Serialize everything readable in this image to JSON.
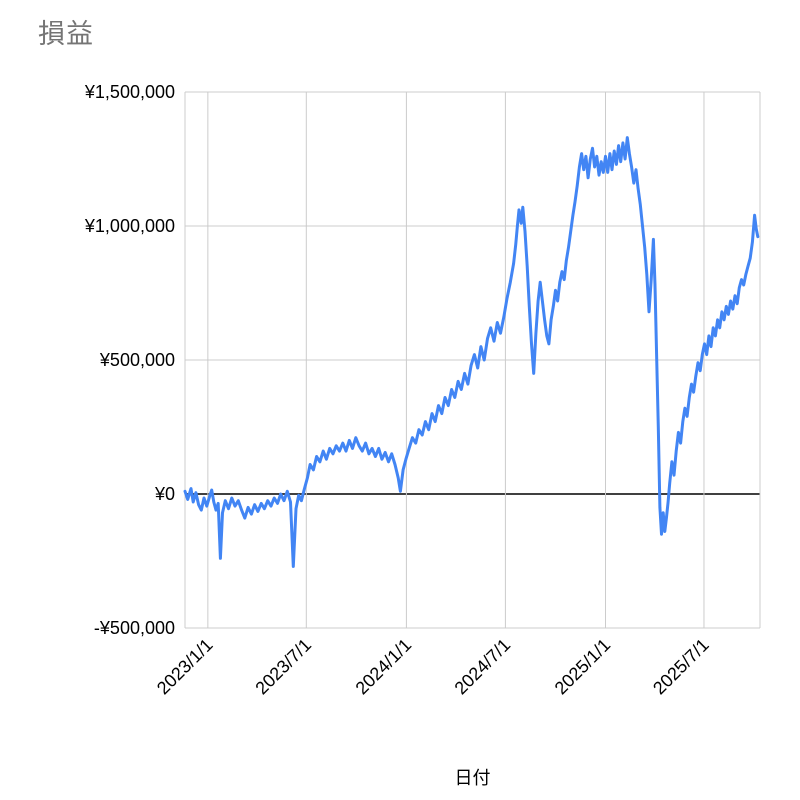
{
  "chart_data": {
    "type": "line",
    "title": "損益",
    "xlabel": "日付",
    "ylabel": "",
    "legend": "none",
    "grid": true,
    "series_name": "損益",
    "colors": {
      "line": "#4285f4",
      "grid": "#cccccc",
      "zero_axis": "#000000",
      "title_text": "#757575",
      "tick_text": "#000000",
      "background": "#ffffff"
    },
    "x_range": [
      "2022-11-20",
      "2025-10-12"
    ],
    "y_range": [
      -500000,
      1500000
    ],
    "y_ticks": [
      {
        "value": 1500000,
        "label": "¥1,500,000"
      },
      {
        "value": 1000000,
        "label": "¥1,000,000"
      },
      {
        "value": 500000,
        "label": "¥500,000"
      },
      {
        "value": 0,
        "label": "¥0"
      },
      {
        "value": -500000,
        "label": "-¥500,000"
      }
    ],
    "x_ticks": [
      {
        "date": "2023-01-01",
        "label": "2023/1/1"
      },
      {
        "date": "2023-07-01",
        "label": "2023/7/1"
      },
      {
        "date": "2024-01-01",
        "label": "2024/1/1"
      },
      {
        "date": "2024-07-01",
        "label": "2024/7/1"
      },
      {
        "date": "2025-01-01",
        "label": "2025/1/1"
      },
      {
        "date": "2025-07-01",
        "label": "2025/7/1"
      }
    ],
    "points": [
      [
        "2022-11-20",
        10000
      ],
      [
        "2022-11-25",
        -20000
      ],
      [
        "2022-12-01",
        20000
      ],
      [
        "2022-12-05",
        -30000
      ],
      [
        "2022-12-10",
        5000
      ],
      [
        "2022-12-15",
        -40000
      ],
      [
        "2022-12-20",
        -60000
      ],
      [
        "2022-12-25",
        -15000
      ],
      [
        "2022-12-30",
        -45000
      ],
      [
        "2023-01-04",
        -10000
      ],
      [
        "2023-01-08",
        15000
      ],
      [
        "2023-01-12",
        -30000
      ],
      [
        "2023-01-16",
        -60000
      ],
      [
        "2023-01-20",
        -35000
      ],
      [
        "2023-01-24",
        -240000
      ],
      [
        "2023-01-28",
        -70000
      ],
      [
        "2023-02-02",
        -25000
      ],
      [
        "2023-02-08",
        -55000
      ],
      [
        "2023-02-14",
        -15000
      ],
      [
        "2023-02-20",
        -45000
      ],
      [
        "2023-02-26",
        -25000
      ],
      [
        "2023-03-04",
        -60000
      ],
      [
        "2023-03-10",
        -90000
      ],
      [
        "2023-03-16",
        -50000
      ],
      [
        "2023-03-22",
        -75000
      ],
      [
        "2023-03-28",
        -40000
      ],
      [
        "2023-04-03",
        -65000
      ],
      [
        "2023-04-09",
        -35000
      ],
      [
        "2023-04-15",
        -55000
      ],
      [
        "2023-04-21",
        -25000
      ],
      [
        "2023-04-27",
        -45000
      ],
      [
        "2023-05-03",
        -15000
      ],
      [
        "2023-05-09",
        -35000
      ],
      [
        "2023-05-15",
        0
      ],
      [
        "2023-05-21",
        -25000
      ],
      [
        "2023-05-27",
        10000
      ],
      [
        "2023-06-02",
        -30000
      ],
      [
        "2023-06-07",
        -270000
      ],
      [
        "2023-06-12",
        -55000
      ],
      [
        "2023-06-17",
        -5000
      ],
      [
        "2023-06-22",
        -25000
      ],
      [
        "2023-06-27",
        15000
      ],
      [
        "2023-07-03",
        60000
      ],
      [
        "2023-07-08",
        110000
      ],
      [
        "2023-07-14",
        90000
      ],
      [
        "2023-07-20",
        140000
      ],
      [
        "2023-07-26",
        120000
      ],
      [
        "2023-08-01",
        160000
      ],
      [
        "2023-08-07",
        130000
      ],
      [
        "2023-08-13",
        170000
      ],
      [
        "2023-08-19",
        150000
      ],
      [
        "2023-08-25",
        180000
      ],
      [
        "2023-08-31",
        160000
      ],
      [
        "2023-09-06",
        190000
      ],
      [
        "2023-09-12",
        160000
      ],
      [
        "2023-09-18",
        200000
      ],
      [
        "2023-09-24",
        170000
      ],
      [
        "2023-09-30",
        210000
      ],
      [
        "2023-10-06",
        180000
      ],
      [
        "2023-10-12",
        160000
      ],
      [
        "2023-10-18",
        190000
      ],
      [
        "2023-10-24",
        150000
      ],
      [
        "2023-10-30",
        170000
      ],
      [
        "2023-11-05",
        140000
      ],
      [
        "2023-11-11",
        170000
      ],
      [
        "2023-11-17",
        130000
      ],
      [
        "2023-11-23",
        155000
      ],
      [
        "2023-11-29",
        120000
      ],
      [
        "2023-12-05",
        150000
      ],
      [
        "2023-12-11",
        110000
      ],
      [
        "2023-12-17",
        60000
      ],
      [
        "2023-12-21",
        10000
      ],
      [
        "2023-12-26",
        90000
      ],
      [
        "2023-12-31",
        130000
      ],
      [
        "2024-01-06",
        170000
      ],
      [
        "2024-01-12",
        210000
      ],
      [
        "2024-01-18",
        190000
      ],
      [
        "2024-01-24",
        240000
      ],
      [
        "2024-01-30",
        220000
      ],
      [
        "2024-02-05",
        270000
      ],
      [
        "2024-02-11",
        240000
      ],
      [
        "2024-02-17",
        300000
      ],
      [
        "2024-02-23",
        270000
      ],
      [
        "2024-02-29",
        330000
      ],
      [
        "2024-03-06",
        300000
      ],
      [
        "2024-03-12",
        360000
      ],
      [
        "2024-03-18",
        330000
      ],
      [
        "2024-03-24",
        390000
      ],
      [
        "2024-03-30",
        360000
      ],
      [
        "2024-04-05",
        420000
      ],
      [
        "2024-04-11",
        390000
      ],
      [
        "2024-04-17",
        450000
      ],
      [
        "2024-04-23",
        410000
      ],
      [
        "2024-04-29",
        480000
      ],
      [
        "2024-05-05",
        520000
      ],
      [
        "2024-05-11",
        470000
      ],
      [
        "2024-05-17",
        550000
      ],
      [
        "2024-05-23",
        500000
      ],
      [
        "2024-05-29",
        580000
      ],
      [
        "2024-06-04",
        620000
      ],
      [
        "2024-06-10",
        570000
      ],
      [
        "2024-06-16",
        640000
      ],
      [
        "2024-06-22",
        600000
      ],
      [
        "2024-06-28",
        660000
      ],
      [
        "2024-07-04",
        730000
      ],
      [
        "2024-07-10",
        790000
      ],
      [
        "2024-07-16",
        860000
      ],
      [
        "2024-07-20",
        930000
      ],
      [
        "2024-07-23",
        1000000
      ],
      [
        "2024-07-26",
        1060000
      ],
      [
        "2024-07-30",
        1010000
      ],
      [
        "2024-08-02",
        1070000
      ],
      [
        "2024-08-06",
        980000
      ],
      [
        "2024-08-10",
        850000
      ],
      [
        "2024-08-14",
        700000
      ],
      [
        "2024-08-18",
        560000
      ],
      [
        "2024-08-22",
        450000
      ],
      [
        "2024-08-26",
        600000
      ],
      [
        "2024-08-30",
        720000
      ],
      [
        "2024-09-03",
        790000
      ],
      [
        "2024-09-07",
        720000
      ],
      [
        "2024-09-11",
        650000
      ],
      [
        "2024-09-15",
        590000
      ],
      [
        "2024-09-19",
        560000
      ],
      [
        "2024-09-23",
        650000
      ],
      [
        "2024-09-27",
        700000
      ],
      [
        "2024-10-01",
        760000
      ],
      [
        "2024-10-05",
        720000
      ],
      [
        "2024-10-09",
        790000
      ],
      [
        "2024-10-13",
        830000
      ],
      [
        "2024-10-17",
        800000
      ],
      [
        "2024-10-21",
        870000
      ],
      [
        "2024-10-25",
        920000
      ],
      [
        "2024-10-29",
        980000
      ],
      [
        "2024-11-02",
        1040000
      ],
      [
        "2024-11-06",
        1090000
      ],
      [
        "2024-11-10",
        1150000
      ],
      [
        "2024-11-14",
        1220000
      ],
      [
        "2024-11-18",
        1270000
      ],
      [
        "2024-11-22",
        1210000
      ],
      [
        "2024-11-26",
        1260000
      ],
      [
        "2024-11-30",
        1180000
      ],
      [
        "2024-12-04",
        1250000
      ],
      [
        "2024-12-08",
        1290000
      ],
      [
        "2024-12-12",
        1220000
      ],
      [
        "2024-12-16",
        1260000
      ],
      [
        "2024-12-20",
        1190000
      ],
      [
        "2024-12-24",
        1240000
      ],
      [
        "2024-12-28",
        1200000
      ],
      [
        "2025-01-01",
        1260000
      ],
      [
        "2025-01-05",
        1200000
      ],
      [
        "2025-01-09",
        1270000
      ],
      [
        "2025-01-13",
        1210000
      ],
      [
        "2025-01-17",
        1280000
      ],
      [
        "2025-01-21",
        1230000
      ],
      [
        "2025-01-25",
        1300000
      ],
      [
        "2025-01-29",
        1240000
      ],
      [
        "2025-02-02",
        1310000
      ],
      [
        "2025-02-06",
        1250000
      ],
      [
        "2025-02-10",
        1330000
      ],
      [
        "2025-02-14",
        1270000
      ],
      [
        "2025-02-18",
        1220000
      ],
      [
        "2025-02-22",
        1160000
      ],
      [
        "2025-02-26",
        1210000
      ],
      [
        "2025-03-02",
        1140000
      ],
      [
        "2025-03-06",
        1080000
      ],
      [
        "2025-03-10",
        1000000
      ],
      [
        "2025-03-14",
        920000
      ],
      [
        "2025-03-18",
        820000
      ],
      [
        "2025-03-22",
        680000
      ],
      [
        "2025-03-26",
        800000
      ],
      [
        "2025-03-30",
        950000
      ],
      [
        "2025-04-02",
        780000
      ],
      [
        "2025-04-05",
        520000
      ],
      [
        "2025-04-08",
        250000
      ],
      [
        "2025-04-11",
        -50000
      ],
      [
        "2025-04-14",
        -150000
      ],
      [
        "2025-04-17",
        -70000
      ],
      [
        "2025-04-20",
        -140000
      ],
      [
        "2025-04-23",
        -90000
      ],
      [
        "2025-04-26",
        -30000
      ],
      [
        "2025-04-29",
        40000
      ],
      [
        "2025-05-03",
        120000
      ],
      [
        "2025-05-07",
        70000
      ],
      [
        "2025-05-11",
        160000
      ],
      [
        "2025-05-15",
        230000
      ],
      [
        "2025-05-19",
        190000
      ],
      [
        "2025-05-23",
        270000
      ],
      [
        "2025-05-27",
        320000
      ],
      [
        "2025-05-31",
        290000
      ],
      [
        "2025-06-04",
        360000
      ],
      [
        "2025-06-08",
        410000
      ],
      [
        "2025-06-12",
        380000
      ],
      [
        "2025-06-16",
        440000
      ],
      [
        "2025-06-20",
        490000
      ],
      [
        "2025-06-24",
        460000
      ],
      [
        "2025-06-28",
        520000
      ],
      [
        "2025-07-02",
        560000
      ],
      [
        "2025-07-06",
        520000
      ],
      [
        "2025-07-10",
        590000
      ],
      [
        "2025-07-14",
        550000
      ],
      [
        "2025-07-18",
        620000
      ],
      [
        "2025-07-22",
        590000
      ],
      [
        "2025-07-26",
        650000
      ],
      [
        "2025-07-30",
        620000
      ],
      [
        "2025-08-03",
        680000
      ],
      [
        "2025-08-07",
        650000
      ],
      [
        "2025-08-11",
        700000
      ],
      [
        "2025-08-15",
        670000
      ],
      [
        "2025-08-19",
        720000
      ],
      [
        "2025-08-23",
        690000
      ],
      [
        "2025-08-27",
        740000
      ],
      [
        "2025-08-31",
        710000
      ],
      [
        "2025-09-04",
        770000
      ],
      [
        "2025-09-08",
        800000
      ],
      [
        "2025-09-12",
        780000
      ],
      [
        "2025-09-16",
        820000
      ],
      [
        "2025-09-20",
        850000
      ],
      [
        "2025-09-24",
        880000
      ],
      [
        "2025-09-28",
        940000
      ],
      [
        "2025-10-02",
        1040000
      ],
      [
        "2025-10-05",
        990000
      ],
      [
        "2025-10-08",
        960000
      ]
    ]
  }
}
